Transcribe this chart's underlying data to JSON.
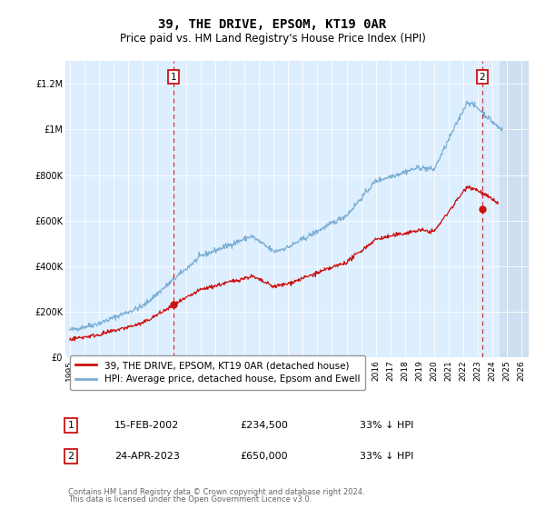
{
  "title": "39, THE DRIVE, EPSOM, KT19 0AR",
  "subtitle": "Price paid vs. HM Land Registry's House Price Index (HPI)",
  "title_fontsize": 10,
  "subtitle_fontsize": 8.5,
  "bg_color": "#ddeeff",
  "ylim": [
    0,
    1300000
  ],
  "xlim_start": 1994.7,
  "xlim_end": 2026.5,
  "yticks": [
    0,
    200000,
    400000,
    600000,
    800000,
    1000000,
    1200000
  ],
  "ytick_labels": [
    "£0",
    "£200K",
    "£400K",
    "£600K",
    "£800K",
    "£1M",
    "£1.2M"
  ],
  "xticks": [
    1995,
    1996,
    1997,
    1998,
    1999,
    2000,
    2001,
    2002,
    2003,
    2004,
    2005,
    2006,
    2007,
    2008,
    2009,
    2010,
    2011,
    2012,
    2013,
    2014,
    2015,
    2016,
    2017,
    2018,
    2019,
    2020,
    2021,
    2022,
    2023,
    2024,
    2025,
    2026
  ],
  "sale1_x": 2002.12,
  "sale1_y": 234500,
  "sale2_x": 2023.31,
  "sale2_y": 650000,
  "hpi_color": "#7aaed4",
  "price_color": "#cc1111",
  "marker_box_color": "#cc1111",
  "legend_line1": "39, THE DRIVE, EPSOM, KT19 0AR (detached house)",
  "legend_line2": "HPI: Average price, detached house, Epsom and Ewell",
  "footer1": "Contains HM Land Registry data © Crown copyright and database right 2024.",
  "footer2": "This data is licensed under the Open Government Licence v3.0.",
  "table_row1": [
    "1",
    "15-FEB-2002",
    "£234,500",
    "33% ↓ HPI"
  ],
  "table_row2": [
    "2",
    "24-APR-2023",
    "£650,000",
    "33% ↓ HPI"
  ],
  "hatch_start": 2024.5
}
